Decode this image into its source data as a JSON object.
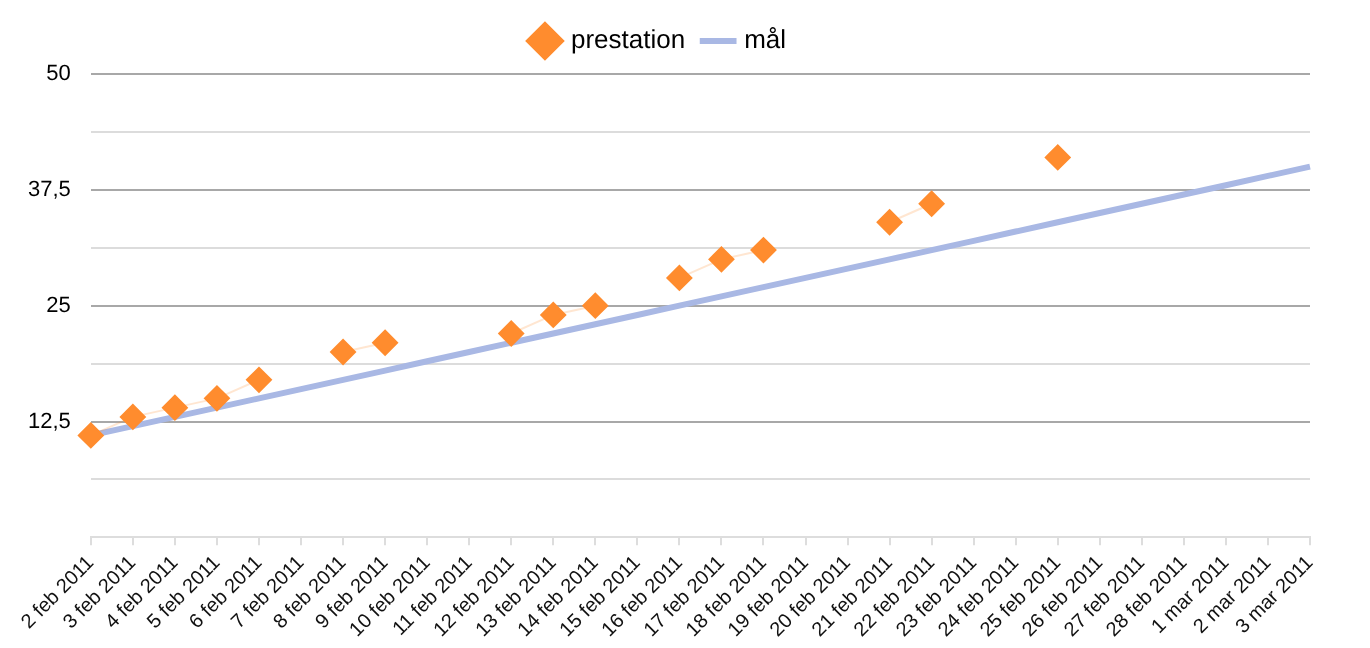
{
  "chart_data": {
    "type": "line",
    "categories": [
      "2 feb 2011",
      "3 feb 2011",
      "4 feb 2011",
      "5 feb 2011",
      "6 feb 2011",
      "7 feb 2011",
      "8 feb 2011",
      "9 feb 2011",
      "10 feb 2011",
      "11 feb 2011",
      "12 feb 2011",
      "13 feb 2011",
      "14 feb 2011",
      "15 feb 2011",
      "16 feb 2011",
      "17 feb 2011",
      "18 feb 2011",
      "19 feb 2011",
      "20 feb 2011",
      "21 feb 2011",
      "22 feb 2011",
      "23 feb 2011",
      "24 feb 2011",
      "25 feb 2011",
      "26 feb 2011",
      "27 feb 2011",
      "28 feb 2011",
      "1 mar 2011",
      "2 mar 2011",
      "3 mar 2011"
    ],
    "series": [
      {
        "name": "prestation",
        "color": "#ff8c2e",
        "marker": "diamond",
        "values": [
          11,
          13,
          14,
          15,
          17,
          null,
          20,
          21,
          null,
          null,
          22,
          24,
          25,
          null,
          28,
          30,
          31,
          null,
          null,
          34,
          36,
          null,
          null,
          41,
          null,
          null,
          null,
          null,
          null,
          null
        ]
      },
      {
        "name": "mål",
        "color": "#a9b8e4",
        "marker": "none",
        "values": [
          11,
          12,
          13,
          14,
          15,
          16,
          17,
          18,
          19,
          20,
          21,
          22,
          23,
          24,
          25,
          26,
          27,
          28,
          29,
          30,
          31,
          32,
          33,
          34,
          35,
          36,
          37,
          38,
          39,
          40
        ]
      }
    ],
    "ylim": [
      0,
      50
    ],
    "yticks": [
      {
        "value": 0,
        "label": null
      },
      {
        "value": 6.25,
        "label": null
      },
      {
        "value": 12.5,
        "label": "12,5"
      },
      {
        "value": 18.75,
        "label": null
      },
      {
        "value": 25,
        "label": "25"
      },
      {
        "value": 31.25,
        "label": null
      },
      {
        "value": 37.5,
        "label": "37,5"
      },
      {
        "value": 43.75,
        "label": null
      },
      {
        "value": 50,
        "label": "50"
      }
    ],
    "grid": "y",
    "legend": "top"
  }
}
